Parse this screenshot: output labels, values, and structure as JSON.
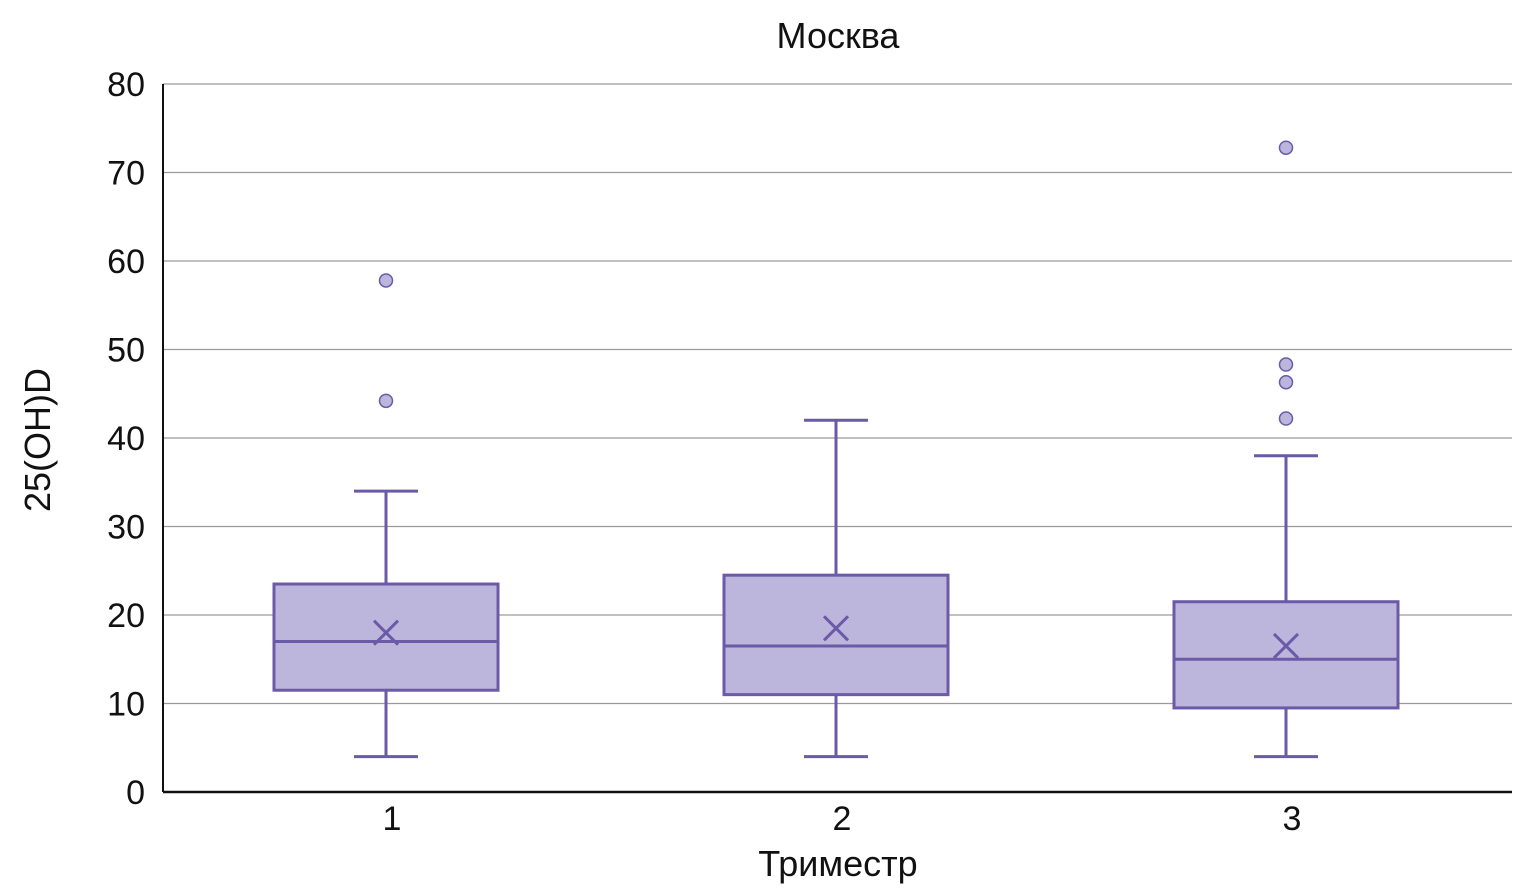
{
  "chart_data": {
    "type": "boxplot",
    "title": "Москва",
    "xlabel": "Триместр",
    "ylabel": "25(OH)D",
    "ylim": [
      0,
      80
    ],
    "yticks": [
      0,
      10,
      20,
      30,
      40,
      50,
      60,
      70,
      80
    ],
    "grid": true,
    "categories": [
      "1",
      "2",
      "3"
    ],
    "boxes": [
      {
        "category": "1",
        "whisker_low": 4,
        "q1": 11.5,
        "median": 17,
        "q3": 23.5,
        "whisker_high": 34,
        "mean": 18,
        "outliers": [
          44.2,
          57.8
        ]
      },
      {
        "category": "2",
        "whisker_low": 4,
        "q1": 11,
        "median": 16.5,
        "q3": 24.5,
        "whisker_high": 42,
        "mean": 18.5,
        "outliers": []
      },
      {
        "category": "3",
        "whisker_low": 4,
        "q1": 9.5,
        "median": 15,
        "q3": 21.5,
        "whisker_high": 38,
        "mean": 16.5,
        "outliers": [
          42.2,
          46.3,
          48.3,
          72.8
        ]
      }
    ],
    "colors": {
      "box_fill": "#bcb6dd",
      "box_stroke": "#6a5aa8",
      "outlier_fill": "#bcb6dd",
      "grid": "#9a9a9a",
      "axis": "#111111"
    }
  }
}
